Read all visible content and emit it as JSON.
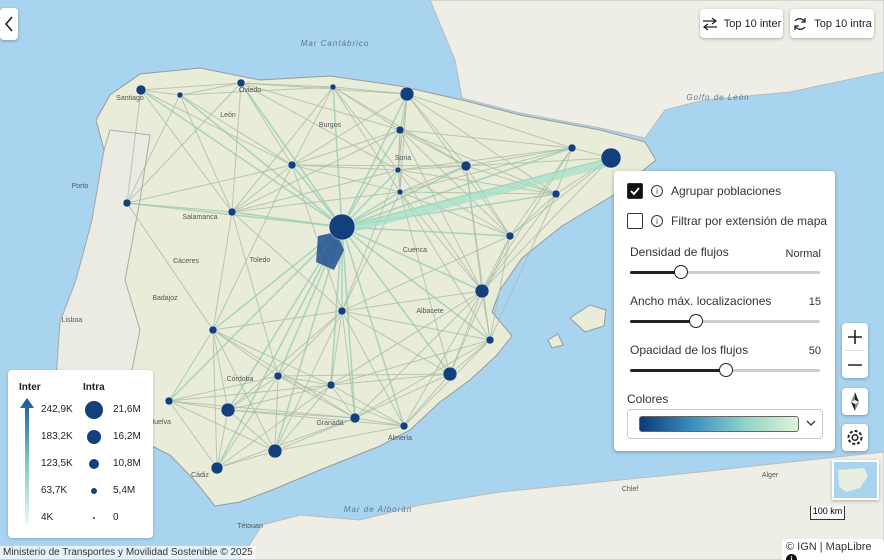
{
  "top_buttons": [
    "Top 10 inter",
    "Top 10 intra"
  ],
  "panel": {
    "group": "Agrupar poblaciones",
    "filter": "Filtrar por extensión de mapa",
    "sliders": [
      {
        "label": "Densidad de flujos",
        "value": "Normal"
      },
      {
        "label": "Ancho máx. localizaciones",
        "value": "15"
      },
      {
        "label": "Opacidad de los flujos",
        "value": "50"
      }
    ],
    "colors": "Colores"
  },
  "legend": {
    "inter_title": "Inter",
    "inter_values": [
      "242,9K",
      "183,2K",
      "123,5K",
      "63,7K",
      "4K"
    ],
    "intra_title": "Intra",
    "intra_values": [
      "21,6M",
      "16,2M",
      "10,8M",
      "5,4M",
      "0"
    ]
  },
  "map_labels": [
    "Mar Cantábrico",
    "Golfo de León",
    "Mar de Alborán",
    "Lisboa",
    "Porto",
    "Santiago",
    "Oviedo",
    "León",
    "Burgos",
    "Soria",
    "Salamanca",
    "Cáceres",
    "Badajoz",
    "Toledo",
    "Cuenca",
    "Albacete",
    "Córdoba",
    "Granada",
    "Almería",
    "Huelva",
    "Cádiz",
    "Tétouan",
    "Chlef",
    "Alger"
  ],
  "attribution": "Ministerio de Transportes y Movilidad Sostenible © 2025",
  "credits": "© IGN | MapLibre",
  "scale": "100 km"
}
